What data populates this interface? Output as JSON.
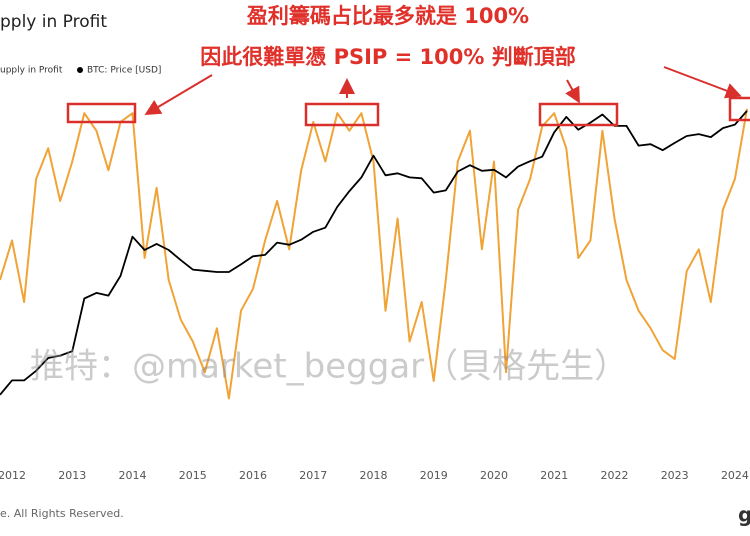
{
  "chart_data": {
    "type": "line",
    "title": "pply in Profit",
    "annotations": [
      "盈利籌碼占比最多就是 100%",
      "因此很難單憑 PSIP = 100% 判斷頂部"
    ],
    "watermark": "推特：@market_beggar（貝格先生）",
    "footer": "e. All Rights Reserved.",
    "logo": "g",
    "x": [
      2011.8,
      2012.0,
      2012.2,
      2012.4,
      2012.6,
      2012.8,
      2013.0,
      2013.2,
      2013.4,
      2013.6,
      2013.8,
      2014.0,
      2014.2,
      2014.4,
      2014.6,
      2014.8,
      2015.0,
      2015.2,
      2015.4,
      2015.6,
      2015.8,
      2016.0,
      2016.2,
      2016.4,
      2016.6,
      2016.8,
      2017.0,
      2017.2,
      2017.4,
      2017.6,
      2017.8,
      2018.0,
      2018.2,
      2018.4,
      2018.6,
      2018.8,
      2019.0,
      2019.2,
      2019.4,
      2019.6,
      2019.8,
      2020.0,
      2020.2,
      2020.4,
      2020.6,
      2020.8,
      2021.0,
      2021.2,
      2021.4,
      2021.6,
      2021.8,
      2022.0,
      2022.2,
      2022.4,
      2022.6,
      2022.8,
      2023.0,
      2023.2,
      2023.4,
      2023.6,
      2023.8,
      2024.0,
      2024.2
    ],
    "xlim": [
      2011.8,
      2024.25
    ],
    "xticks": [
      2012,
      2013,
      2014,
      2015,
      2016,
      2017,
      2018,
      2019,
      2020,
      2021,
      2022,
      2023,
      2024
    ],
    "ylim": [
      20,
      102
    ],
    "y2lim": [
      0.3,
      100000
    ],
    "y2scale": "log",
    "series": [
      {
        "name": "upply in Profit",
        "color": "#f0a336",
        "values": [
          61,
          70,
          56,
          84,
          91,
          79,
          88,
          99,
          95,
          86,
          97,
          99,
          66,
          82,
          61,
          52,
          47,
          40,
          50,
          34,
          54,
          59,
          70,
          79,
          68,
          86,
          97,
          88,
          99,
          95,
          99,
          88,
          54,
          75,
          47,
          56,
          38,
          61,
          88,
          95,
          68,
          88,
          40,
          77,
          84,
          96,
          99,
          91,
          66,
          70,
          95,
          75,
          61,
          54,
          50,
          45,
          43,
          63,
          68,
          56,
          77,
          84,
          100
        ]
      },
      {
        "name": "BTC: Price [USD]",
        "color": "#000000",
        "axis": "y2",
        "values": [
          3,
          5,
          5,
          7,
          11,
          12,
          14,
          90,
          110,
          100,
          200,
          800,
          500,
          620,
          500,
          350,
          250,
          240,
          230,
          230,
          300,
          400,
          420,
          650,
          600,
          720,
          950,
          1100,
          2300,
          4000,
          6500,
          14000,
          7000,
          7500,
          6500,
          6300,
          3800,
          4100,
          8000,
          10000,
          8200,
          8500,
          6500,
          9500,
          11500,
          13500,
          32000,
          55000,
          35000,
          45000,
          60000,
          40000,
          40000,
          20000,
          21000,
          17000,
          22000,
          28000,
          30000,
          27000,
          37000,
          42000,
          68000
        ]
      }
    ]
  }
}
